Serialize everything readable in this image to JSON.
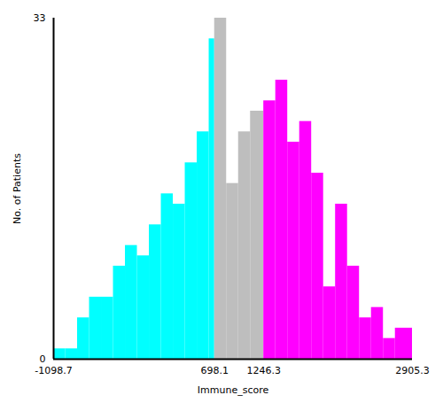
{
  "chart_data": {
    "type": "histogram",
    "xlabel": "Immune_score",
    "ylabel": "No. of Patients",
    "bins": [
      -1098.7,
      -965.2,
      -831.7,
      -698.2,
      -564.7,
      -431.2,
      -297.7,
      -164.2,
      -30.7,
      102.8,
      236.3,
      369.8,
      503.3,
      636.8,
      698.1,
      831.6,
      965.1,
      1098.6,
      1246.3,
      1379.8,
      1513.3,
      1646.8,
      1780.3,
      1913.8,
      2047.3,
      2180.8,
      2314.3,
      2447.8,
      2581.3,
      2714.8,
      2905.3
    ],
    "values": [
      1,
      1,
      4,
      6,
      6,
      9,
      11,
      10,
      13,
      16,
      15,
      19,
      22,
      31,
      33,
      17,
      22,
      24,
      25,
      27,
      21,
      23,
      18,
      7,
      15,
      9,
      4,
      5,
      2,
      3
    ],
    "colors": [
      "#00FFFF",
      "#00FFFF",
      "#00FFFF",
      "#00FFFF",
      "#00FFFF",
      "#00FFFF",
      "#00FFFF",
      "#00FFFF",
      "#00FFFF",
      "#00FFFF",
      "#00FFFF",
      "#00FFFF",
      "#00FFFF",
      "#00FFFF",
      "#BEBEBE",
      "#BEBEBE",
      "#BEBEBE",
      "#BEBEBE",
      "#FF00FF",
      "#FF00FF",
      "#FF00FF",
      "#FF00FF",
      "#FF00FF",
      "#FF00FF",
      "#FF00FF",
      "#FF00FF",
      "#FF00FF",
      "#FF00FF",
      "#FF00FF",
      "#FF00FF"
    ],
    "xlim": [
      -1098.7,
      2905.3
    ],
    "xticks": [
      -1098.7,
      698.1,
      1246.3,
      2905.3
    ],
    "ylim": [
      0,
      33
    ],
    "yticks": [
      0,
      33
    ],
    "grid": false
  }
}
